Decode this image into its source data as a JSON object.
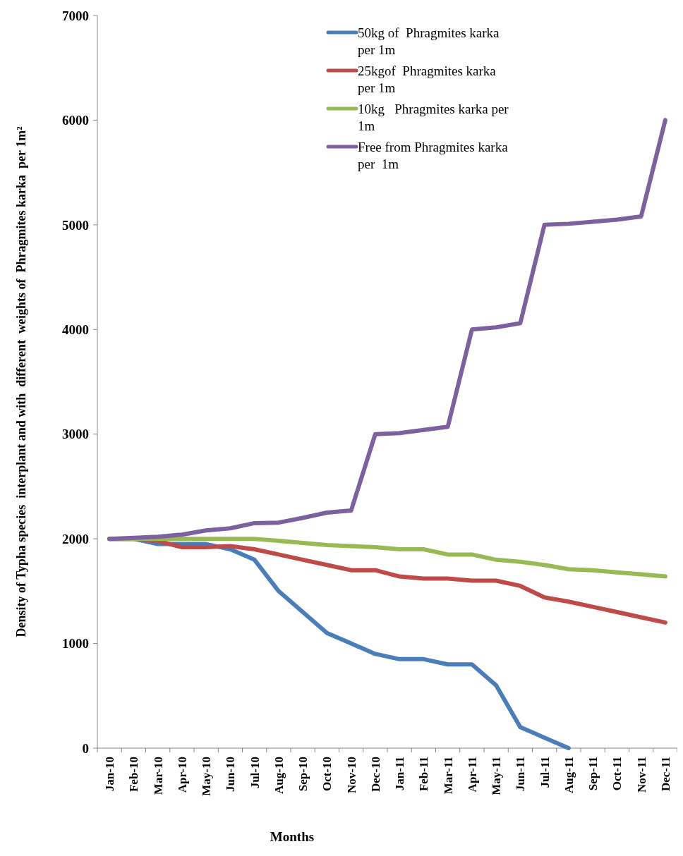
{
  "chart_data": {
    "type": "line",
    "xlabel": "Months",
    "ylabel": "Density of Typha species  interplant and with  different  weights of  Phragmites karka  per 1m²",
    "categories": [
      "Jan-10",
      "Feb-10",
      "Mar-10",
      "Apr-10",
      "May-10",
      "Jun-10",
      "Jul-10",
      "Aug-10",
      "Sep-10",
      "Oct-10",
      "Nov-10",
      "Dec-10",
      "Jan-11",
      "Feb-11",
      "Mar-11",
      "Apr-11",
      "May-11",
      "Jun-11",
      "Jul-11",
      "Aug-11",
      "Sep-11",
      "Oct-11",
      "Nov-11",
      "Dec-11"
    ],
    "series": [
      {
        "name": "50kg of  Phragmites karka per 1m",
        "color": "#4a7ebb",
        "values": [
          2000,
          2000,
          1950,
          1950,
          1950,
          1900,
          1800,
          1500,
          1300,
          1100,
          1000,
          900,
          850,
          850,
          800,
          800,
          600,
          200,
          100,
          0,
          null,
          null,
          null,
          null
        ]
      },
      {
        "name": "25kgof  Phragmites karka per 1m",
        "color": "#be4b48",
        "values": [
          2000,
          2000,
          1980,
          1920,
          1920,
          1930,
          1900,
          1850,
          1800,
          1750,
          1700,
          1700,
          1640,
          1620,
          1620,
          1600,
          1600,
          1550,
          1440,
          1400,
          1350,
          1300,
          1250,
          1200
        ]
      },
      {
        "name": "10kg   Phragmites karka per 1m",
        "color": "#98b954",
        "values": [
          2000,
          2000,
          2000,
          2000,
          2000,
          2000,
          2000,
          1980,
          1960,
          1940,
          1930,
          1920,
          1900,
          1900,
          1850,
          1850,
          1800,
          1780,
          1750,
          1710,
          1700,
          1680,
          1660,
          1640
        ]
      },
      {
        "name": "Free from Phragmites karka per  1m",
        "color": "#7d60a0",
        "values": [
          2000,
          2010,
          2020,
          2040,
          2080,
          2100,
          2150,
          2155,
          2200,
          2250,
          2270,
          3000,
          3010,
          3040,
          3070,
          4000,
          4020,
          4060,
          5000,
          5010,
          5030,
          5050,
          5080,
          6000
        ]
      }
    ],
    "ylim": [
      0,
      7000
    ],
    "yticks": [
      0,
      1000,
      2000,
      3000,
      4000,
      5000,
      6000,
      7000
    ],
    "grid": false,
    "legend": "top right",
    "marker": "none",
    "line_style": "solid"
  }
}
